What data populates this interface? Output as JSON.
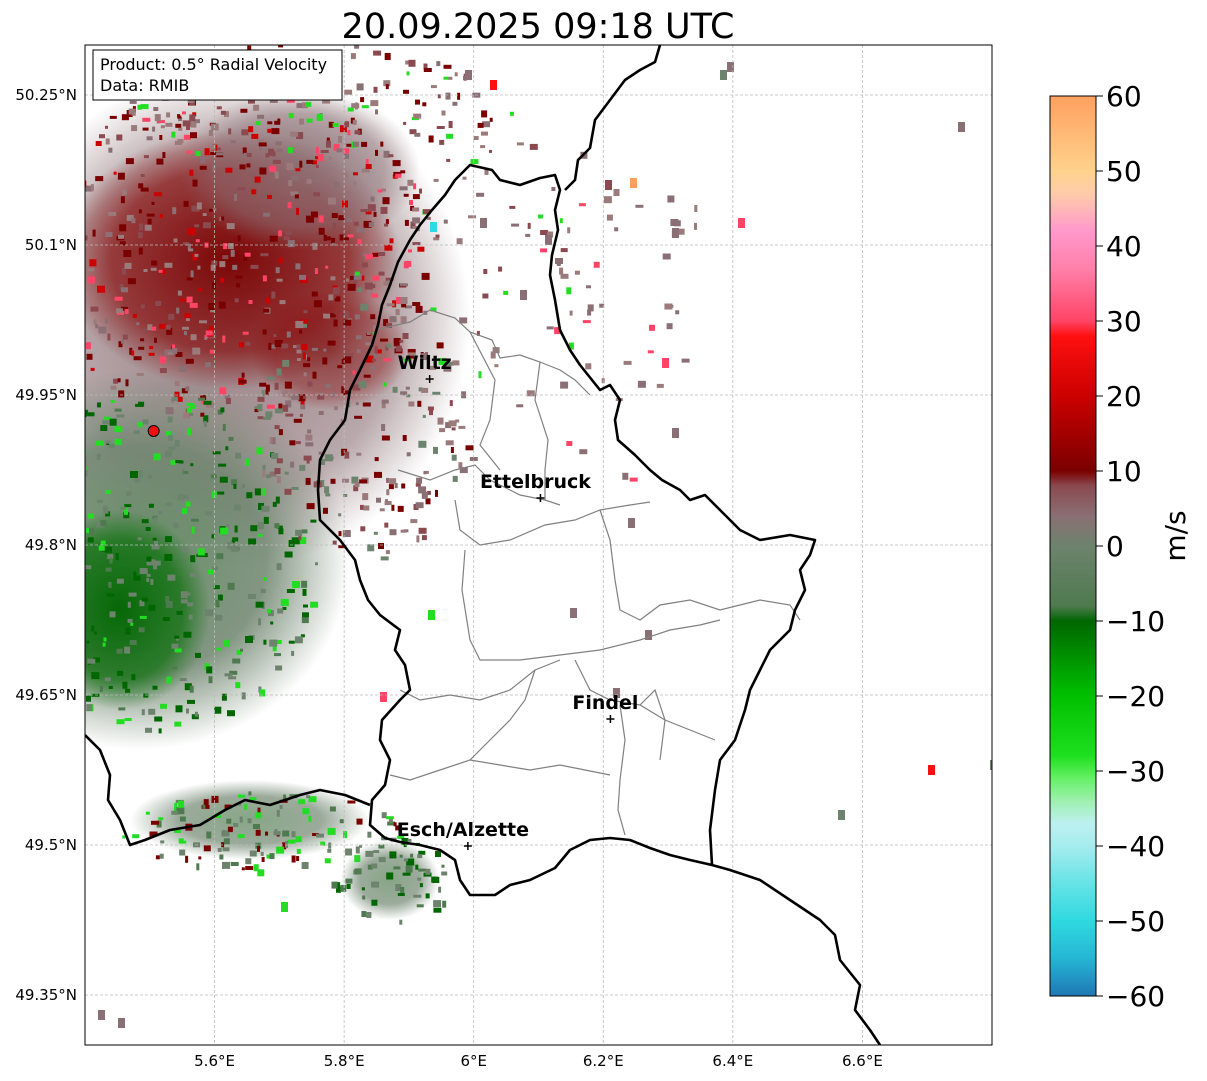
{
  "title": "20.09.2025 09:18 UTC",
  "info_box": {
    "product": "Product: 0.5° Radial Velocity",
    "data_source": "Data: RMIB"
  },
  "map": {
    "lon_range": [
      5.4,
      6.8
    ],
    "lat_range": [
      49.3,
      50.3
    ],
    "lon_ticks": [
      {
        "value": 5.6,
        "label": "5.6°E"
      },
      {
        "value": 5.8,
        "label": "5.8°E"
      },
      {
        "value": 6.0,
        "label": "6°E"
      },
      {
        "value": 6.2,
        "label": "6.2°E"
      },
      {
        "value": 6.4,
        "label": "6.4°E"
      },
      {
        "value": 6.6,
        "label": "6.6°E"
      }
    ],
    "lat_ticks": [
      {
        "value": 50.25,
        "label": "50.25°N"
      },
      {
        "value": 50.1,
        "label": "50.1°N"
      },
      {
        "value": 49.95,
        "label": "49.95°N"
      },
      {
        "value": 49.8,
        "label": "49.8°N"
      },
      {
        "value": 49.65,
        "label": "49.65°N"
      },
      {
        "value": 49.5,
        "label": "49.5°N"
      },
      {
        "value": 49.35,
        "label": "49.35°N"
      }
    ],
    "radar_site": {
      "lon": 5.506,
      "lat": 49.914
    },
    "cities": [
      {
        "name": "Wiltz",
        "lon": 5.932,
        "lat": 49.966
      },
      {
        "name": "Ettelbruck",
        "lon": 6.103,
        "lat": 49.847
      },
      {
        "name": "Findel",
        "lon": 6.211,
        "lat": 49.626
      },
      {
        "name": "Esch/Alzette",
        "lon": 5.991,
        "lat": 49.499
      }
    ]
  },
  "colorbar": {
    "label": "m/s",
    "min": -60,
    "max": 60,
    "ticks": [
      {
        "value": 60,
        "label": "60"
      },
      {
        "value": 50,
        "label": "50"
      },
      {
        "value": 40,
        "label": "40"
      },
      {
        "value": 30,
        "label": "30"
      },
      {
        "value": 20,
        "label": "20"
      },
      {
        "value": 10,
        "label": "10"
      },
      {
        "value": 0,
        "label": "0"
      },
      {
        "value": -10,
        "label": "−10"
      },
      {
        "value": -20,
        "label": "−20"
      },
      {
        "value": -30,
        "label": "−30"
      },
      {
        "value": -40,
        "label": "−40"
      },
      {
        "value": -50,
        "label": "−50"
      },
      {
        "value": -60,
        "label": "−60"
      }
    ],
    "stops": [
      {
        "v": -60,
        "color": "#1f77b4"
      },
      {
        "v": -55,
        "color": "#25b6d4"
      },
      {
        "v": -50,
        "color": "#2fd9e0"
      },
      {
        "v": -45,
        "color": "#66e3e6"
      },
      {
        "v": -40,
        "color": "#a6ecee"
      },
      {
        "v": -37,
        "color": "#bdf0f0"
      },
      {
        "v": -34,
        "color": "#9ef0b0"
      },
      {
        "v": -31,
        "color": "#66f066"
      },
      {
        "v": -28,
        "color": "#1fe01f"
      },
      {
        "v": -20,
        "color": "#00c000"
      },
      {
        "v": -10,
        "color": "#006600"
      },
      {
        "v": -8,
        "color": "#4f7a4f"
      },
      {
        "v": 0,
        "color": "#6d836d"
      },
      {
        "v": 4,
        "color": "#8a6f74"
      },
      {
        "v": 8,
        "color": "#8a4a4f"
      },
      {
        "v": 10,
        "color": "#7a0000"
      },
      {
        "v": 20,
        "color": "#cc0000"
      },
      {
        "v": 28,
        "color": "#ff1010"
      },
      {
        "v": 30,
        "color": "#ff4466"
      },
      {
        "v": 37,
        "color": "#ff80aa"
      },
      {
        "v": 42,
        "color": "#ff99cc"
      },
      {
        "v": 47,
        "color": "#ffccaa"
      },
      {
        "v": 50,
        "color": "#ffd28c"
      },
      {
        "v": 60,
        "color": "#ffa060"
      }
    ]
  },
  "colors": {
    "border": "#000000",
    "canton": "#808080",
    "grid": "#bbbbbb",
    "radar": "#ee1111"
  }
}
